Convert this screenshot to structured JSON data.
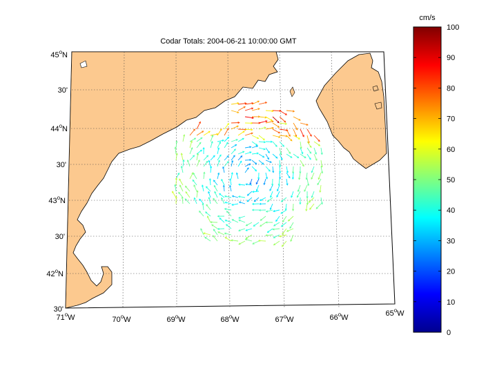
{
  "title": "Codar Totals:  2004-06-21 10:00:00 GMT",
  "lon_labels": [
    {
      "deg": "71",
      "hemi": "W"
    },
    {
      "deg": "70",
      "hemi": "W"
    },
    {
      "deg": "69",
      "hemi": "W"
    },
    {
      "deg": "68",
      "hemi": "W"
    },
    {
      "deg": "67",
      "hemi": "W"
    },
    {
      "deg": "66",
      "hemi": "W"
    },
    {
      "deg": "65",
      "hemi": "W"
    }
  ],
  "lat_labels": [
    {
      "text": "45",
      "hemi": "N",
      "kind": "deg"
    },
    {
      "text": "30'",
      "kind": "min"
    },
    {
      "text": "44",
      "hemi": "N",
      "kind": "deg"
    },
    {
      "text": "30'",
      "kind": "min"
    },
    {
      "text": "43",
      "hemi": "N",
      "kind": "deg"
    },
    {
      "text": "30'",
      "kind": "min"
    },
    {
      "text": "42",
      "hemi": "N",
      "kind": "deg"
    },
    {
      "text": "30'",
      "kind": "min"
    }
  ],
  "colorbar": {
    "unit_label": "cm/s",
    "ticks": [
      "0",
      "10",
      "20",
      "30",
      "40",
      "50",
      "60",
      "70",
      "80",
      "90",
      "100"
    ],
    "min": 0,
    "max": 100,
    "colormap": "jet"
  },
  "colors": {
    "land": "#fcc98f",
    "water": "#ffffff",
    "grid": "#444444"
  }
}
